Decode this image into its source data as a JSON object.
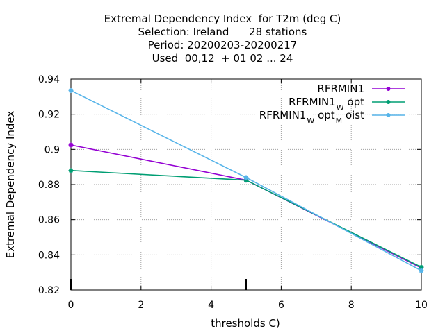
{
  "chart_data": {
    "type": "line",
    "title_lines": [
      "Extremal Dependency Index  for T2m (deg C)",
      "Selection: Ireland      28 stations",
      "Period: 20200203-20200217",
      "Used  00,12  + 01 02 ... 24"
    ],
    "xlabel": "thresholds C)",
    "ylabel": "Extremal Dependency Index",
    "xlim": [
      0,
      10
    ],
    "ylim": [
      0.82,
      0.94
    ],
    "xticks": [
      0,
      2,
      4,
      6,
      8,
      10
    ],
    "yticks": [
      0.82,
      0.84,
      0.86,
      0.88,
      0.9,
      0.92,
      0.94
    ],
    "ytick_labels": [
      "0.82",
      "0.84",
      "0.86",
      "0.88",
      "0.9",
      "0.92",
      "0.94"
    ],
    "grid": true,
    "legend_position": "top-right",
    "x": [
      0,
      5,
      10
    ],
    "series": [
      {
        "name_parts": [
          {
            "text": "RFRMIN1",
            "sub": false
          }
        ],
        "color": "#9400d3",
        "values": [
          0.9025,
          0.8825,
          0.8325
        ]
      },
      {
        "name_parts": [
          {
            "text": "RFRMIN1",
            "sub": false
          },
          {
            "text": "W",
            "sub": true
          },
          {
            "text": "opt",
            "sub": false
          }
        ],
        "color": "#009e73",
        "values": [
          0.888,
          0.8825,
          0.833
        ]
      },
      {
        "name_parts": [
          {
            "text": "RFRMIN1",
            "sub": false
          },
          {
            "text": "W",
            "sub": true
          },
          {
            "text": "opt",
            "sub": false
          },
          {
            "text": "M",
            "sub": true
          },
          {
            "text": "oist",
            "sub": false
          }
        ],
        "color": "#56b4e9",
        "values": [
          0.9335,
          0.884,
          0.831
        ]
      }
    ]
  }
}
